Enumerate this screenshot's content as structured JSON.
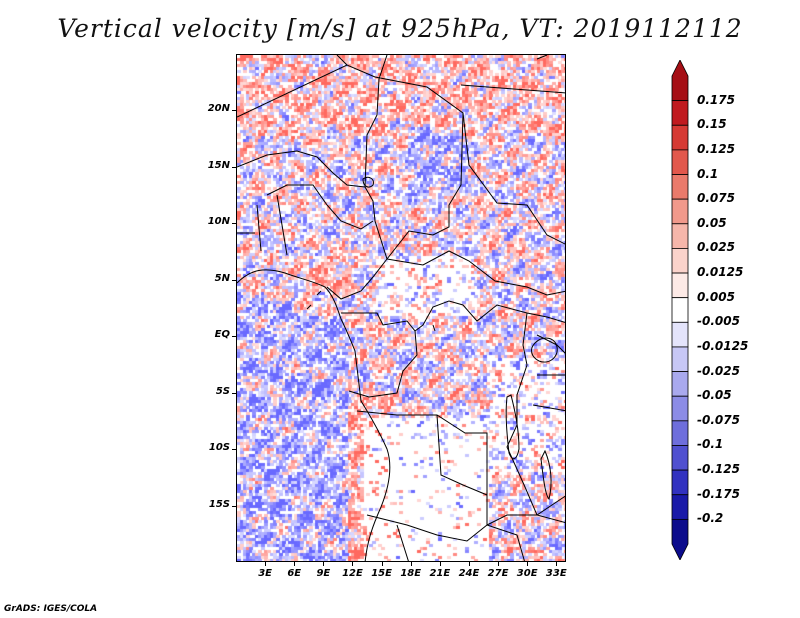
{
  "title": "Vertical velocity [m/s] at 925hPa, VT: 2019112112",
  "footer": "GrADS: IGES/COLA",
  "map": {
    "lon_range": [
      0,
      34
    ],
    "lat_range": [
      -20,
      25
    ],
    "lat_ticks": [
      "20N",
      "15N",
      "10N",
      "5N",
      "EQ",
      "5S",
      "10S",
      "15S"
    ],
    "lat_tick_values": [
      20,
      15,
      10,
      5,
      0,
      -5,
      -10,
      -15
    ],
    "lon_ticks": [
      "3E",
      "6E",
      "9E",
      "12E",
      "15E",
      "18E",
      "21E",
      "24E",
      "27E",
      "30E",
      "33E"
    ],
    "lon_tick_values": [
      3,
      6,
      9,
      12,
      15,
      18,
      21,
      24,
      27,
      30,
      33
    ]
  },
  "colorbar": {
    "labels": [
      "0.175",
      "0.15",
      "0.125",
      "0.1",
      "0.075",
      "0.05",
      "0.025",
      "0.0125",
      "0.005",
      "-0.005",
      "-0.0125",
      "-0.025",
      "-0.05",
      "-0.075",
      "-0.1",
      "-0.125",
      "-0.175",
      "-0.2"
    ],
    "colors": [
      "#a50f15",
      "#c01a1f",
      "#d63a34",
      "#e2584c",
      "#ea7a6b",
      "#f1998b",
      "#f6b6aa",
      "#fbd3cb",
      "#fdeae6",
      "#ffffff",
      "#e4e4fb",
      "#c7c7f5",
      "#a9a9ee",
      "#8c8ce6",
      "#6e6edc",
      "#5050d0",
      "#3232c0",
      "#1a1aa8",
      "#0c0c8c"
    ]
  }
}
